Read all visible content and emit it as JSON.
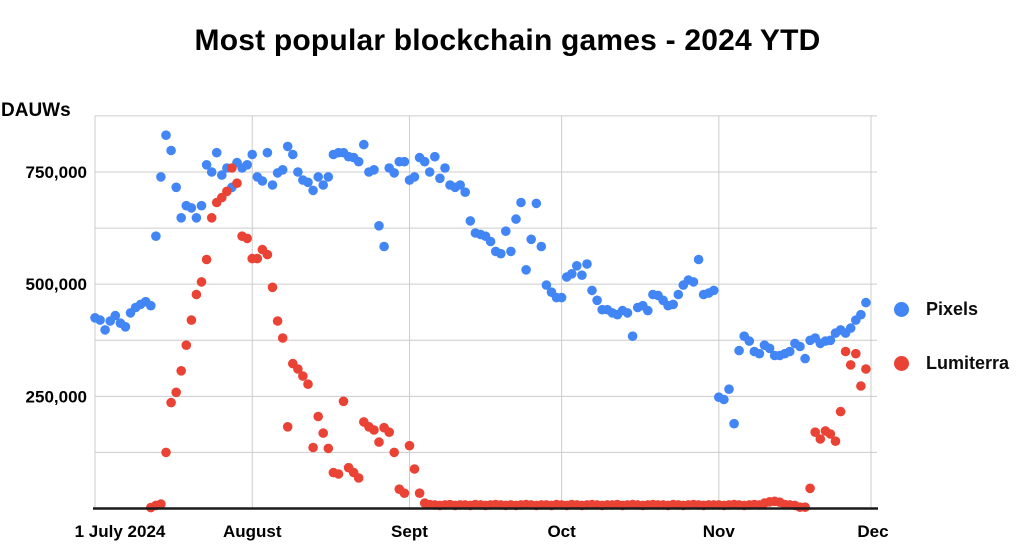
{
  "title": "Most popular blockchain games - 2024 YTD",
  "colors": {
    "pixels": "#4285F4",
    "lumiterra": "#EA4335",
    "gridline": "#cccccc",
    "axis_line": "#1a1a1a",
    "text": "#000000",
    "background": "#ffffff"
  },
  "chart_data": {
    "type": "scatter",
    "title": "Most popular blockchain games - 2024 YTD",
    "xlabel": "",
    "ylabel": "DAUWs",
    "ylim": [
      0,
      875000
    ],
    "y_gridline_step": 125000,
    "grid": true,
    "legend_position": "right",
    "x_unit": "days since 1 July 2024",
    "total_days": 153,
    "y_ticks": [
      {
        "value": 250000,
        "label": "250,000"
      },
      {
        "value": 500000,
        "label": "500,000"
      },
      {
        "value": 750000,
        "label": "750,000"
      }
    ],
    "x_ticks": [
      {
        "day": 0,
        "label": "1 July 2024",
        "label_dx": 25
      },
      {
        "day": 31,
        "label": "August",
        "label_dx": 0
      },
      {
        "day": 62,
        "label": "Sept",
        "label_dx": 0
      },
      {
        "day": 92,
        "label": "Oct",
        "label_dx": 0
      },
      {
        "day": 123,
        "label": "Nov",
        "label_dx": 0
      },
      {
        "day": 153,
        "label": "Dec",
        "label_dx": 2
      }
    ],
    "series": [
      {
        "name": "Pixels",
        "color": "#4285F4",
        "start_day": 0,
        "values": [
          425000,
          420000,
          398000,
          418000,
          430000,
          413000,
          405000,
          436000,
          448000,
          455000,
          461000,
          452000,
          607000,
          739000,
          832000,
          798000,
          716000,
          648000,
          675000,
          670000,
          648000,
          675000,
          766000,
          750000,
          793000,
          743000,
          759000,
          716000,
          771000,
          759000,
          766000,
          789000,
          739000,
          730000,
          793000,
          721000,
          748000,
          755000,
          807000,
          789000,
          750000,
          732000,
          727000,
          709000,
          739000,
          721000,
          739000,
          789000,
          793000,
          793000,
          784000,
          782000,
          773000,
          811000,
          750000,
          755000,
          630000,
          584000,
          759000,
          748000,
          773000,
          773000,
          732000,
          739000,
          782000,
          773000,
          750000,
          784000,
          736000,
          759000,
          721000,
          716000,
          721000,
          705000,
          641000,
          614000,
          611000,
          607000,
          595000,
          573000,
          568000,
          618000,
          573000,
          645000,
          682000,
          532000,
          600000,
          680000,
          584000,
          498000,
          482000,
          470000,
          470000,
          516000,
          523000,
          541000,
          520000,
          545000,
          486000,
          464000,
          443000,
          443000,
          436000,
          432000,
          441000,
          436000,
          384000,
          448000,
          452000,
          441000,
          477000,
          475000,
          464000,
          452000,
          455000,
          477000,
          498000,
          509000,
          505000,
          555000,
          477000,
          480000,
          486000,
          248000,
          243000,
          266000,
          189000,
          352000,
          384000,
          373000,
          350000,
          345000,
          364000,
          357000,
          341000,
          341000,
          345000,
          350000,
          368000,
          361000,
          334000,
          375000,
          380000,
          368000,
          373000,
          375000,
          391000,
          398000,
          391000,
          402000,
          420000,
          432000,
          459000
        ]
      },
      {
        "name": "Lumiterra",
        "color": "#EA4335",
        "start_day": 11,
        "values": [
          2000,
          7000,
          10000,
          125000,
          236000,
          259000,
          307000,
          364000,
          420000,
          477000,
          505000,
          555000,
          648000,
          682000,
          693000,
          707000,
          759000,
          725000,
          607000,
          602000,
          557000,
          557000,
          577000,
          566000,
          493000,
          418000,
          380000,
          182000,
          323000,
          311000,
          295000,
          277000,
          136000,
          205000,
          168000,
          134000,
          80000,
          77000,
          239000,
          91000,
          80000,
          68000,
          193000,
          182000,
          175000,
          148000,
          180000,
          170000,
          125000,
          43000,
          34000,
          140000,
          88000,
          34000,
          12000,
          9000,
          8000,
          7000,
          8000,
          9000,
          7000,
          8000,
          8000,
          7000,
          9000,
          8000,
          7000,
          8000,
          9000,
          8000,
          7000,
          8000,
          7000,
          8000,
          9000,
          8000,
          7000,
          8000,
          8000,
          7000,
          9000,
          8000,
          7000,
          9000,
          8000,
          7000,
          8000,
          9000,
          8000,
          7000,
          8000,
          8000,
          9000,
          7000,
          8000,
          9000,
          8000,
          7000,
          8000,
          9000,
          8000,
          8000,
          7000,
          9000,
          8000,
          7000,
          8000,
          9000,
          8000,
          7000,
          8000,
          8000,
          8000,
          7000,
          8000,
          9000,
          8000,
          7000,
          8000,
          9000,
          8000,
          12000,
          15000,
          16000,
          14000,
          9000,
          8000,
          7000,
          3000,
          3000,
          45000,
          170000,
          155000,
          173000,
          166000,
          150000,
          216000,
          350000,
          320000,
          345000,
          273000,
          311000
        ]
      }
    ]
  },
  "legend": {
    "items": [
      {
        "label": "Pixels",
        "color": "#4285F4"
      },
      {
        "label": "Lumiterra",
        "color": "#EA4335"
      }
    ]
  }
}
